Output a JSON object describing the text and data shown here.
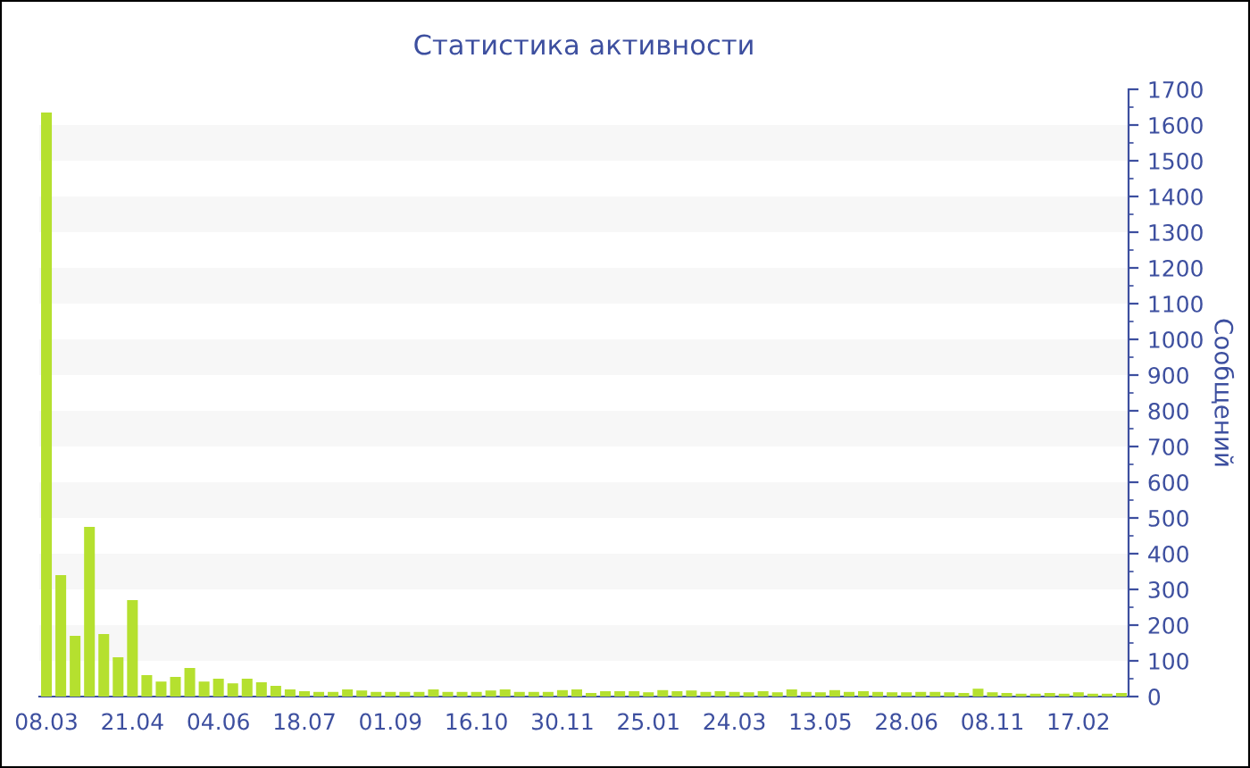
{
  "chart_data": {
    "type": "bar",
    "title": "Статистика активности",
    "ylabel": "Сообщений",
    "categories": [
      "08.03",
      null,
      null,
      null,
      null,
      null,
      "21.04",
      null,
      null,
      null,
      null,
      null,
      "04.06",
      null,
      null,
      null,
      null,
      null,
      "18.07",
      null,
      null,
      null,
      null,
      null,
      "01.09",
      null,
      null,
      null,
      null,
      null,
      "16.10",
      null,
      null,
      null,
      null,
      null,
      "30.11",
      null,
      null,
      null,
      null,
      null,
      "25.01",
      null,
      null,
      null,
      null,
      null,
      "24.03",
      null,
      null,
      null,
      null,
      null,
      "13.05",
      null,
      null,
      null,
      null,
      null,
      "28.06",
      null,
      null,
      null,
      null,
      null,
      "08.11",
      null,
      null,
      null,
      null,
      null,
      "17.02",
      null,
      null,
      null
    ],
    "values": [
      1635,
      340,
      170,
      475,
      175,
      110,
      270,
      60,
      42,
      55,
      80,
      42,
      50,
      37,
      50,
      40,
      30,
      20,
      15,
      13,
      13,
      20,
      17,
      13,
      13,
      13,
      13,
      20,
      13,
      13,
      13,
      17,
      20,
      13,
      13,
      13,
      18,
      20,
      10,
      15,
      15,
      15,
      12,
      18,
      15,
      17,
      13,
      15,
      13,
      12,
      15,
      12,
      20,
      13,
      12,
      18,
      13,
      15,
      13,
      12,
      12,
      13,
      13,
      12,
      10,
      22,
      12,
      10,
      8,
      8,
      10,
      8,
      12,
      8,
      8,
      10
    ],
    "color": "#b5e02f",
    "ylim": [
      0,
      1700
    ],
    "yticks": [
      0,
      100,
      200,
      300,
      400,
      500,
      600,
      700,
      800,
      900,
      1000,
      1100,
      1200,
      1300,
      1400,
      1500,
      1600,
      1700
    ],
    "bands": [
      {
        "axis": "y",
        "from": 100,
        "to": 200,
        "color": "#f7f7f7"
      },
      {
        "axis": "y",
        "from": 300,
        "to": 400,
        "color": "#f7f7f7"
      },
      {
        "axis": "y",
        "from": 500,
        "to": 600,
        "color": "#f7f7f7"
      },
      {
        "axis": "y",
        "from": 700,
        "to": 800,
        "color": "#f7f7f7"
      },
      {
        "axis": "y",
        "from": 900,
        "to": 1000,
        "color": "#f7f7f7"
      },
      {
        "axis": "y",
        "from": 1100,
        "to": 1200,
        "color": "#f7f7f7"
      },
      {
        "axis": "y",
        "from": 1300,
        "to": 1400,
        "color": "#f7f7f7"
      },
      {
        "axis": "y",
        "from": 1500,
        "to": 1600,
        "color": "#f7f7f7"
      }
    ]
  }
}
